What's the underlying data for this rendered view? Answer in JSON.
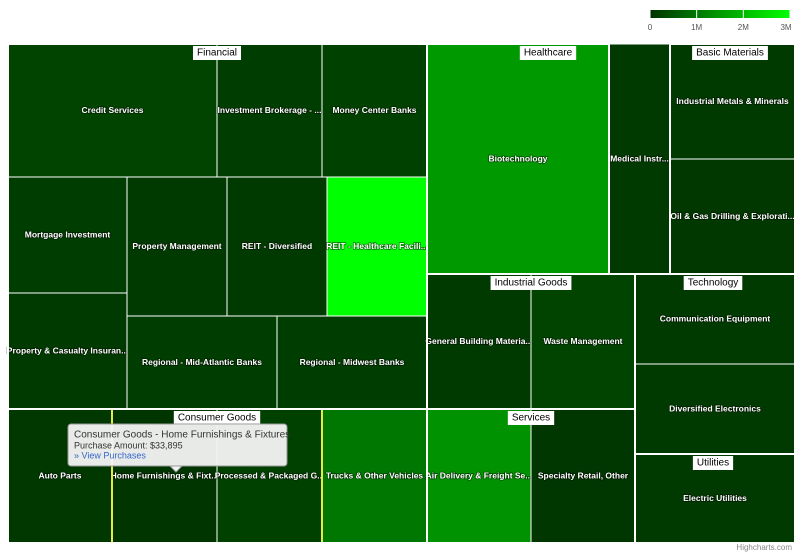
{
  "chart_data": {
    "type": "treemap",
    "color_axis": {
      "min": 0,
      "max": 3000000,
      "min_color": "#003300",
      "max_color": "#00ff00",
      "ticks": [
        0,
        {
          "value": 1000000,
          "label": "1M"
        },
        {
          "value": 2000000,
          "label": "2M"
        },
        {
          "value": 3000000,
          "label": "3M"
        }
      ]
    },
    "groups": [
      {
        "name": "Financial",
        "leaves": [
          {
            "name": "Credit Services",
            "value": 250000
          },
          {
            "name": "Investment Brokerage - ...",
            "value": 150000
          },
          {
            "name": "Money Center Banks",
            "value": 200000
          },
          {
            "name": "Mortgage Investment",
            "value": 150000
          },
          {
            "name": "Property Management",
            "value": 100000
          },
          {
            "name": "REIT - Diversified",
            "value": 100000
          },
          {
            "name": "REIT - Healthcare Facili...",
            "value": 3000000
          },
          {
            "name": "Property & Casualty Insuran...",
            "value": 100000
          },
          {
            "name": "Regional - Mid-Atlantic Banks",
            "value": 150000
          },
          {
            "name": "Regional - Midwest Banks",
            "value": 150000
          }
        ]
      },
      {
        "name": "Healthcare",
        "leaves": [
          {
            "name": "Biotechnology",
            "value": 1500000
          },
          {
            "name": "Medical Instr...",
            "value": 100000
          }
        ]
      },
      {
        "name": "Basic Materials",
        "leaves": [
          {
            "name": "Industrial Metals & Minerals",
            "value": 100000
          },
          {
            "name": "Oil & Gas Drilling & Explorati...",
            "value": 80000
          }
        ]
      },
      {
        "name": "Industrial Goods",
        "leaves": [
          {
            "name": "General Building Materia...",
            "value": 100000
          },
          {
            "name": "Waste Management",
            "value": 250000
          }
        ]
      },
      {
        "name": "Technology",
        "leaves": [
          {
            "name": "Communication Equipment",
            "value": 100000
          },
          {
            "name": "Diversified Electronics",
            "value": 100000
          }
        ]
      },
      {
        "name": "Consumer Goods",
        "leaves": [
          {
            "name": "Auto Parts",
            "value": 80000
          },
          {
            "name": "Home Furnishings & Fixt...",
            "value": 33895
          },
          {
            "name": "Processed & Packaged G...",
            "value": 200000
          },
          {
            "name": "Trucks & Other Vehicles",
            "value": 1000000
          }
        ]
      },
      {
        "name": "Services",
        "leaves": [
          {
            "name": "Air Delivery & Freight Se...",
            "value": 1400000
          },
          {
            "name": "Specialty Retail, Other",
            "value": 50000
          }
        ]
      },
      {
        "name": "Utilities",
        "leaves": [
          {
            "name": "Electric Utilities",
            "value": 100000
          }
        ]
      }
    ],
    "tooltip": {
      "title": "Consumer Goods - Home Furnishings & Fixtures",
      "amount": "Purchase Amount: $33,895",
      "link": "» View Purchases"
    },
    "credits": "Highcharts.com"
  }
}
